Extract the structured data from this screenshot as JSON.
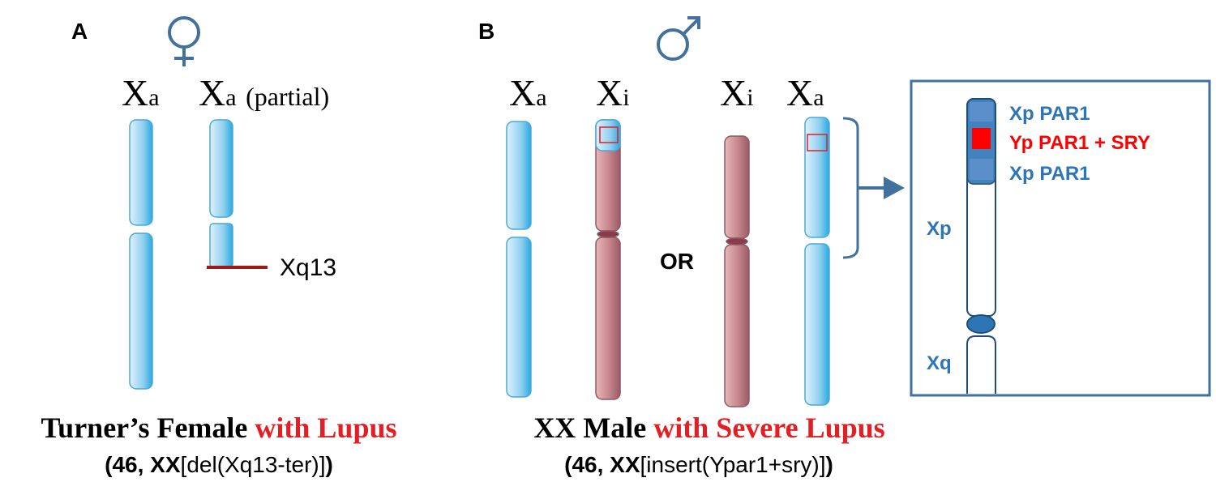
{
  "panel_a": {
    "label": "A",
    "chromosomes": [
      {
        "main": "X",
        "sub": "a"
      },
      {
        "main": "X",
        "sub": "a",
        "note": "(partial)"
      }
    ],
    "breakpoint": "Xq13",
    "caption": {
      "black": "Turner’s Female",
      "red": "with Lupus",
      "karyotype": [
        "(46, XX",
        "[del(Xq13-ter)]",
        ")"
      ]
    }
  },
  "panel_b": {
    "label": "B",
    "chromosomes": [
      {
        "main": "X",
        "sub": "a"
      },
      {
        "main": "X",
        "sub": "i"
      },
      {
        "main": "X",
        "sub": "i"
      },
      {
        "main": "X",
        "sub": "a"
      }
    ],
    "or": "OR",
    "inset": {
      "band1": "Xp PAR1",
      "band2": "Yp PAR1 + SRY",
      "band3": "Xp PAR1",
      "arm_p": "Xp",
      "arm_q": "Xq"
    },
    "caption": {
      "black": "XX Male",
      "red": "with Severe Lupus",
      "karyotype": [
        "(46, XX",
        "[insert(Ypar1+sry)]",
        ")"
      ]
    }
  }
}
